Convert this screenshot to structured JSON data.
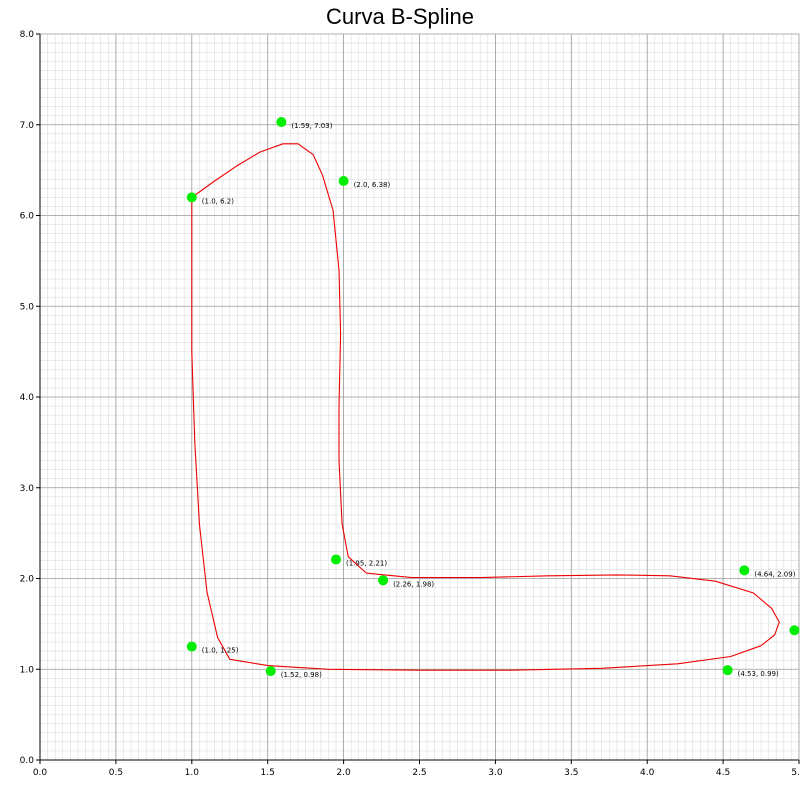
{
  "chart_data": {
    "type": "scatter",
    "title": "Curva B-Spline",
    "xlabel": "",
    "ylabel": "",
    "xlim": [
      0,
      5
    ],
    "ylim": [
      0,
      8
    ],
    "x_ticks": [
      "0.0",
      "0.5",
      "1.0",
      "1.5",
      "2.0",
      "2.5",
      "3.0",
      "3.5",
      "4.0",
      "4.5",
      "5."
    ],
    "y_ticks": [
      "0.0",
      "1.0",
      "2.0",
      "3.0",
      "4.0",
      "5.0",
      "6.0",
      "7.0",
      "8.0"
    ],
    "grid": true,
    "colors": {
      "points": "#00ee00",
      "curve": "#ee0000",
      "major_grid": "#999999",
      "minor_grid": "#dddddd"
    },
    "control_points": [
      {
        "x": 1.0,
        "y": 6.2,
        "label": "(1.0, 6.2)"
      },
      {
        "x": 1.59,
        "y": 7.03,
        "label": "(1.59, 7.03)"
      },
      {
        "x": 2.0,
        "y": 6.38,
        "label": "(2.0, 6.38)"
      },
      {
        "x": 1.95,
        "y": 2.21,
        "label": "(1.95, 2.21)"
      },
      {
        "x": 2.26,
        "y": 1.98,
        "label": "(2.26, 1.98)"
      },
      {
        "x": 4.64,
        "y": 2.09,
        "label": "(4.64, 2.09)"
      },
      {
        "x": 4.97,
        "y": 1.43,
        "label": ""
      },
      {
        "x": 4.53,
        "y": 0.99,
        "label": "(4.53, 0.99)"
      },
      {
        "x": 1.52,
        "y": 0.98,
        "label": "(1.52, 0.98)"
      },
      {
        "x": 1.0,
        "y": 1.25,
        "label": "(1.0, 1.25)"
      }
    ],
    "curve": {
      "name": "",
      "points": [
        [
          1.0,
          6.2
        ],
        [
          1.15,
          6.38
        ],
        [
          1.3,
          6.55
        ],
        [
          1.45,
          6.7
        ],
        [
          1.6,
          6.79
        ],
        [
          1.7,
          6.79
        ],
        [
          1.8,
          6.67
        ],
        [
          1.86,
          6.45
        ],
        [
          1.93,
          6.06
        ],
        [
          1.97,
          5.4
        ],
        [
          1.98,
          4.7
        ],
        [
          1.97,
          3.9
        ],
        [
          1.97,
          3.3
        ],
        [
          1.99,
          2.6
        ],
        [
          2.03,
          2.24
        ],
        [
          2.15,
          2.06
        ],
        [
          2.45,
          2.01
        ],
        [
          2.9,
          2.01
        ],
        [
          3.35,
          2.03
        ],
        [
          3.8,
          2.04
        ],
        [
          4.15,
          2.03
        ],
        [
          4.45,
          1.97
        ],
        [
          4.7,
          1.84
        ],
        [
          4.82,
          1.67
        ],
        [
          4.87,
          1.52
        ],
        [
          4.84,
          1.38
        ],
        [
          4.75,
          1.26
        ],
        [
          4.55,
          1.14
        ],
        [
          4.2,
          1.06
        ],
        [
          3.7,
          1.01
        ],
        [
          3.1,
          0.99
        ],
        [
          2.5,
          0.99
        ],
        [
          1.9,
          1.0
        ],
        [
          1.5,
          1.04
        ],
        [
          1.25,
          1.11
        ],
        [
          1.17,
          1.35
        ],
        [
          1.1,
          1.85
        ],
        [
          1.05,
          2.6
        ],
        [
          1.02,
          3.5
        ],
        [
          1.0,
          4.5
        ],
        [
          1.0,
          5.5
        ],
        [
          1.0,
          6.2
        ]
      ]
    }
  }
}
